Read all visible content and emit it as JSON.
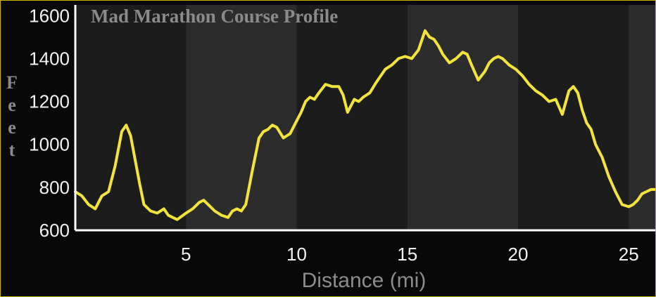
{
  "chart_data": {
    "type": "line",
    "title": "Mad Marathon Course Profile",
    "xlabel": "Distance (mi)",
    "ylabel": "Feet",
    "xlim": [
      0,
      26.2
    ],
    "ylim": [
      600,
      1650
    ],
    "x_ticks": [
      5,
      10,
      15,
      20,
      25
    ],
    "y_ticks": [
      600,
      800,
      1000,
      1200,
      1400,
      1600
    ],
    "grid": false,
    "background_bands": "alternating vertical bands every 5 mi",
    "series": [
      {
        "color": "#f3e43c",
        "x": [
          0,
          0.3,
          0.6,
          0.9,
          1.2,
          1.5,
          1.8,
          2.1,
          2.3,
          2.5,
          2.7,
          2.9,
          3.1,
          3.4,
          3.7,
          4.0,
          4.2,
          4.4,
          4.6,
          4.8,
          5.0,
          5.3,
          5.6,
          5.8,
          6.0,
          6.3,
          6.6,
          6.9,
          7.1,
          7.3,
          7.5,
          7.7,
          8.0,
          8.3,
          8.5,
          8.7,
          8.9,
          9.1,
          9.4,
          9.7,
          10.0,
          10.2,
          10.4,
          10.6,
          10.8,
          11.0,
          11.3,
          11.6,
          11.9,
          12.1,
          12.3,
          12.6,
          12.8,
          13.0,
          13.3,
          13.6,
          14.0,
          14.3,
          14.6,
          14.9,
          15.2,
          15.5,
          15.8,
          16.0,
          16.2,
          16.4,
          16.6,
          16.9,
          17.2,
          17.5,
          17.7,
          17.9,
          18.2,
          18.5,
          18.7,
          18.9,
          19.1,
          19.3,
          19.6,
          19.9,
          20.2,
          20.5,
          20.8,
          21.1,
          21.4,
          21.7,
          22.0,
          22.3,
          22.5,
          22.7,
          22.9,
          23.1,
          23.3,
          23.5,
          23.8,
          24.1,
          24.4,
          24.7,
          25.0,
          25.2,
          25.4,
          25.6,
          25.8,
          26.0,
          26.2
        ],
        "y": [
          780,
          760,
          720,
          700,
          760,
          780,
          900,
          1060,
          1090,
          1040,
          930,
          820,
          720,
          690,
          680,
          700,
          670,
          660,
          650,
          665,
          680,
          700,
          730,
          740,
          720,
          690,
          670,
          660,
          690,
          700,
          690,
          720,
          880,
          1030,
          1060,
          1070,
          1090,
          1080,
          1030,
          1050,
          1110,
          1150,
          1200,
          1220,
          1210,
          1240,
          1280,
          1270,
          1270,
          1230,
          1150,
          1210,
          1200,
          1220,
          1240,
          1290,
          1350,
          1370,
          1400,
          1410,
          1400,
          1440,
          1530,
          1500,
          1490,
          1460,
          1420,
          1380,
          1400,
          1430,
          1420,
          1370,
          1300,
          1340,
          1380,
          1400,
          1410,
          1400,
          1370,
          1350,
          1320,
          1280,
          1250,
          1230,
          1200,
          1210,
          1140,
          1250,
          1270,
          1240,
          1160,
          1100,
          1070,
          1000,
          940,
          850,
          780,
          720,
          710,
          720,
          740,
          770,
          780,
          790,
          790
        ]
      }
    ]
  }
}
